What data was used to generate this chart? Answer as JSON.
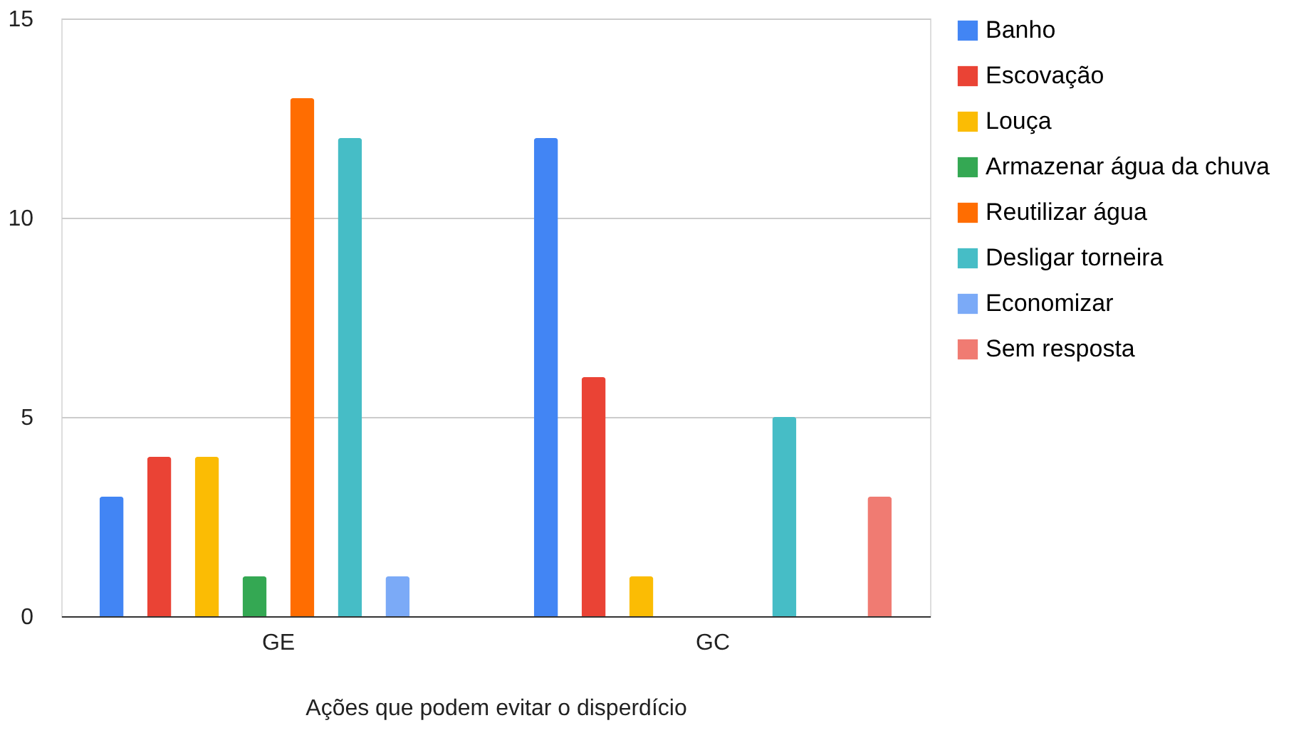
{
  "chart_data": {
    "type": "bar",
    "xlabel": "Ações que podem evitar o disperdício",
    "categories": [
      "GE",
      "GC"
    ],
    "series": [
      {
        "name": "Banho",
        "color": "#4285f4",
        "values": [
          3,
          12
        ]
      },
      {
        "name": "Escovação",
        "color": "#ea4335",
        "values": [
          4,
          6
        ]
      },
      {
        "name": "Louça",
        "color": "#fbbc04",
        "values": [
          4,
          1
        ]
      },
      {
        "name": "Armazenar água da chuva",
        "color": "#34a853",
        "values": [
          1,
          0
        ]
      },
      {
        "name": "Reutilizar água",
        "color": "#ff6d01",
        "values": [
          13,
          0
        ]
      },
      {
        "name": "Desligar torneira",
        "color": "#46bdc6",
        "values": [
          12,
          5
        ]
      },
      {
        "name": "Economizar",
        "color": "#7baaf7",
        "values": [
          1,
          0
        ]
      },
      {
        "name": "Sem resposta",
        "color": "#f07b72",
        "values": [
          0,
          3
        ]
      }
    ],
    "ylim": [
      0,
      15
    ],
    "yticks": [
      0,
      5,
      10,
      15
    ],
    "grid": "y",
    "legend": "top right"
  }
}
